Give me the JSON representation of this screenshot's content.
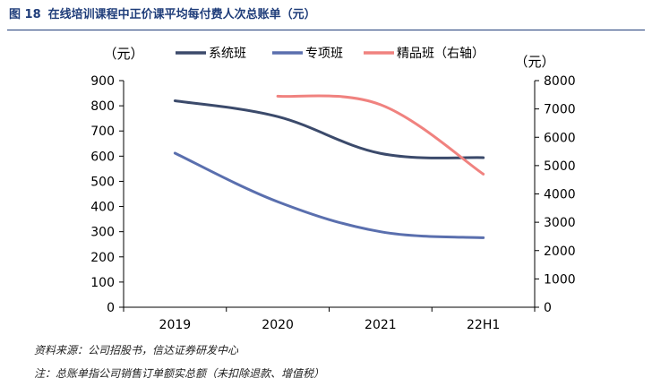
{
  "figure": {
    "number": "图 18",
    "title": "在线培训课程中正价课平均每付费人次总账单（元）"
  },
  "footer": {
    "source": "资料来源：公司招股书，信达证券研发中心",
    "note": "注：总账单指公司销售订单额实总额（未扣除退款、增值税）"
  },
  "chart_data": {
    "type": "line",
    "categories": [
      "2019",
      "2020",
      "2021",
      "22H1"
    ],
    "y_left": {
      "label": "（元）",
      "ylim": [
        0,
        900
      ],
      "ticks": [
        "0",
        "100",
        "200",
        "300",
        "400",
        "500",
        "600",
        "700",
        "800",
        "900"
      ]
    },
    "y_right": {
      "label": "（元）",
      "ylim": [
        0,
        8000
      ],
      "ticks": [
        "0",
        "1000",
        "2000",
        "3000",
        "4000",
        "5000",
        "6000",
        "7000",
        "8000"
      ]
    },
    "legend_position": "top",
    "grid": false,
    "series": [
      {
        "name": "系统班",
        "axis": "left",
        "color": "#3b4a6b",
        "values": [
          820,
          757,
          611,
          594
        ]
      },
      {
        "name": "专项班",
        "axis": "left",
        "color": "#5a6fae",
        "values": [
          612,
          419,
          300,
          276
        ]
      },
      {
        "name": "精品班（右轴）",
        "axis": "right",
        "color": "#f0827f",
        "values": [
          null,
          7450,
          7150,
          4700
        ]
      }
    ]
  }
}
